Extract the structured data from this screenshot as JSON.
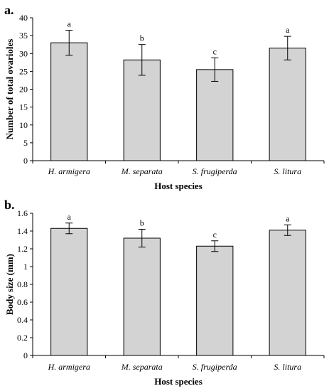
{
  "chart_data": [
    {
      "type": "bar",
      "panel_label": "a.",
      "xlabel": "Host species",
      "ylabel": "Number of total ovarioles",
      "categories": [
        "H. armigera",
        "M. separata",
        "S. frugiperda",
        "S. litura"
      ],
      "values": [
        33,
        28.2,
        25.5,
        31.5
      ],
      "errors": [
        3.5,
        4.3,
        3.3,
        3.3
      ],
      "significance_letters": [
        "a",
        "b",
        "c",
        "a"
      ],
      "ylim": [
        0,
        40
      ],
      "yticks": [
        0,
        5,
        10,
        15,
        20,
        25,
        30,
        35,
        40
      ],
      "bar_color": "#d3d3d3",
      "grid": false,
      "legend": false
    },
    {
      "type": "bar",
      "panel_label": "b.",
      "xlabel": "Host species",
      "ylabel": "Body size (mm)",
      "categories": [
        "H. armigera",
        "M. separata",
        "S. frugiperda",
        "S. litura"
      ],
      "values": [
        1.43,
        1.32,
        1.23,
        1.41
      ],
      "errors": [
        0.06,
        0.1,
        0.06,
        0.06
      ],
      "significance_letters": [
        "a",
        "b",
        "c",
        "a"
      ],
      "ylim": [
        0,
        1.6
      ],
      "yticks": [
        "0",
        "0.2",
        "0.4",
        "0.6",
        "0.8",
        "1",
        "1.2",
        "1.4",
        "1.6"
      ],
      "bar_color": "#d3d3d3",
      "grid": false,
      "legend": false
    }
  ]
}
